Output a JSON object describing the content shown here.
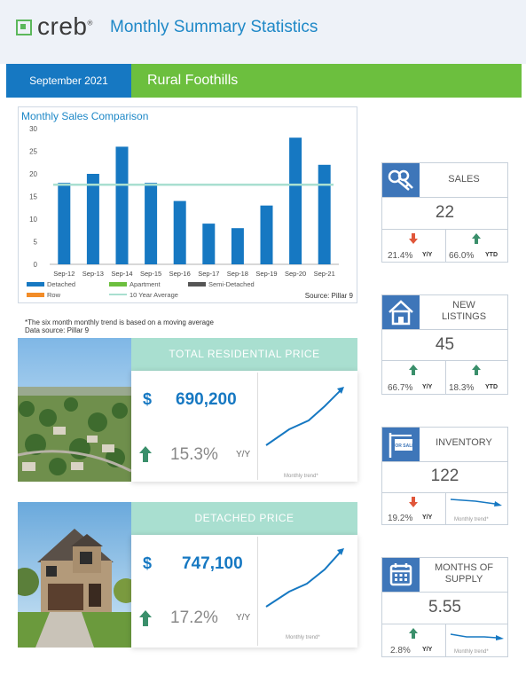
{
  "header": {
    "logo": "creb",
    "logo_mark": "®",
    "title": "Monthly Summary Statistics"
  },
  "band": {
    "date": "September 2021",
    "region": "Rural Foothills"
  },
  "chart_data": {
    "type": "bar",
    "title": "Monthly Sales Comparison",
    "categories": [
      "Sep-12",
      "Sep-13",
      "Sep-14",
      "Sep-15",
      "Sep-16",
      "Sep-17",
      "Sep-18",
      "Sep-19",
      "Sep-20",
      "Sep-21"
    ],
    "series": [
      {
        "name": "Detached",
        "values": [
          18,
          20,
          26,
          18,
          14,
          9,
          8,
          13,
          28,
          22
        ]
      },
      {
        "name": "Apartment",
        "values": [
          0,
          0,
          0,
          0,
          0,
          0,
          0,
          0,
          0,
          0
        ]
      },
      {
        "name": "Semi-Detached",
        "values": [
          0,
          0,
          0,
          0,
          0,
          0,
          0,
          0,
          0,
          0
        ]
      },
      {
        "name": "Row",
        "values": [
          0,
          0,
          0,
          0,
          0,
          0,
          0,
          0,
          0,
          0
        ]
      }
    ],
    "average": {
      "name": "10 Year Average",
      "value": 17.6
    },
    "yticks": [
      "0",
      "5",
      "10",
      "15",
      "20",
      "25",
      "30"
    ],
    "ylim": [
      0,
      30
    ],
    "grid": false,
    "legend_position": "bottom",
    "source": "Source: Pillar 9",
    "colors": {
      "Detached": "#1678c2",
      "Apartment": "#6cbf3e",
      "Semi-Detached": "#555555",
      "Row": "#f28c28",
      "10 Year Average": "#a9dfd0"
    }
  },
  "notes": {
    "line1": "*The six month monthly trend is based on a moving average",
    "line2": "Data source: Pillar 9"
  },
  "total_price": {
    "title": "TOTAL RESIDENTIAL PRICE",
    "currency": "$",
    "value": "690,200",
    "pct": "15.3%",
    "unit": "Y/Y",
    "trend_label": "Monthly trend*",
    "trend_direction": "up"
  },
  "detached_price": {
    "title": "DETACHED PRICE",
    "currency": "$",
    "value": "747,100",
    "pct": "17.2%",
    "unit": "Y/Y",
    "trend_label": "Monthly trend*",
    "trend_direction": "up"
  },
  "kpis": {
    "sales": {
      "label": "SALES",
      "value": "22",
      "left_pct": "21.4%",
      "left_tag": "Y/Y",
      "left_dir": "down",
      "right_pct": "66.0%",
      "right_tag": "YTD",
      "right_dir": "up",
      "icon": "keys-icon"
    },
    "listings": {
      "label1": "NEW",
      "label2": "LISTINGS",
      "value": "45",
      "left_pct": "66.7%",
      "left_tag": "Y/Y",
      "left_dir": "up",
      "right_pct": "18.3%",
      "right_tag": "YTD",
      "right_dir": "up",
      "icon": "house-icon"
    },
    "inventory": {
      "label": "INVENTORY",
      "value": "122",
      "left_pct": "19.2%",
      "left_tag": "Y/Y",
      "left_dir": "down",
      "trend_label": "Monthly trend*",
      "icon": "for-sale-sign-icon",
      "sign_text": "FOR SALE"
    },
    "supply": {
      "label1": "MONTHS OF",
      "label2": "SUPPLY",
      "value": "5.55",
      "left_pct": "2.8%",
      "left_tag": "Y/Y",
      "left_dir": "up",
      "trend_label": "Monthly trend*",
      "icon": "calendar-icon"
    }
  },
  "colors": {
    "up": "#3a8f6b",
    "down": "#e0563a",
    "trend": "#1678c2"
  }
}
